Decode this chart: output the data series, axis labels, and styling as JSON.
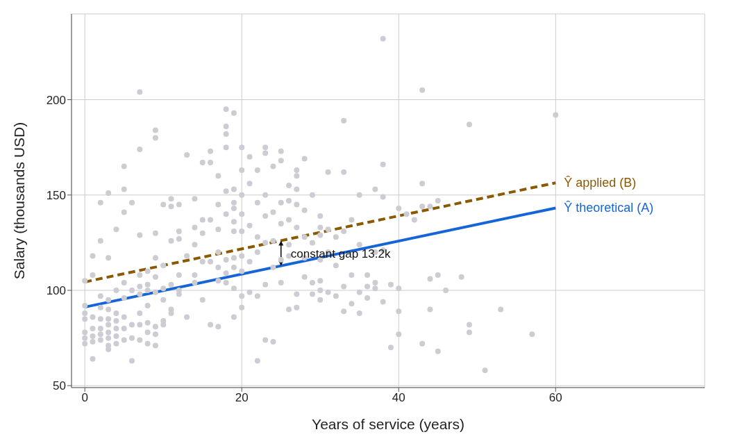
{
  "chart_data": {
    "type": "scatter",
    "xlabel": "Years of service (years)",
    "ylabel": "Salary (thousands USD)",
    "xlim": [
      -1.7,
      79
    ],
    "ylim": [
      49,
      245
    ],
    "xticks": [
      0,
      20,
      40,
      60
    ],
    "yticks": [
      50,
      100,
      150,
      200
    ],
    "grid": true,
    "legend": false,
    "annotations": [
      "constant gap 13.2k"
    ],
    "series": [
      {
        "marker": "circle",
        "color": "#cdccd3",
        "x": [
          0,
          0,
          0,
          0,
          0,
          0,
          0,
          1,
          1,
          1,
          1,
          1,
          1,
          1,
          2,
          2,
          2,
          2,
          2,
          2,
          2,
          2,
          3,
          3,
          3,
          3,
          3,
          3,
          3,
          3,
          3,
          3,
          4,
          4,
          4,
          4,
          4,
          4,
          4,
          5,
          5,
          5,
          5,
          5,
          5,
          5,
          5,
          6,
          6,
          6,
          6,
          6,
          7,
          7,
          7,
          7,
          7,
          7,
          7,
          7,
          7,
          8,
          8,
          8,
          8,
          8,
          8,
          8,
          9,
          9,
          9,
          9,
          9,
          9,
          9,
          9,
          9,
          10,
          10,
          10,
          10,
          10,
          10,
          11,
          11,
          11,
          11,
          11,
          11,
          12,
          12,
          12,
          12,
          12,
          12,
          13,
          13,
          13,
          14,
          14,
          14,
          14,
          14,
          15,
          15,
          15,
          15,
          15,
          16,
          16,
          16,
          16,
          16,
          17,
          17,
          17,
          17,
          17,
          17,
          17,
          18,
          18,
          18,
          18,
          18,
          18,
          18,
          18,
          18,
          19,
          19,
          19,
          19,
          19,
          19,
          19,
          19,
          19,
          19,
          20,
          20,
          20,
          20,
          20,
          20,
          20,
          20,
          20,
          21,
          21,
          21,
          21,
          21,
          22,
          22,
          22,
          22,
          22,
          22,
          23,
          23,
          23,
          23,
          23,
          23,
          23,
          24,
          24,
          24,
          24,
          24,
          25,
          25,
          25,
          25,
          25,
          25,
          26,
          26,
          26,
          26,
          26,
          26,
          27,
          27,
          27,
          27,
          27,
          27,
          27,
          28,
          28,
          28,
          28,
          28,
          29,
          29,
          29,
          29,
          30,
          30,
          30,
          30,
          30,
          30,
          30,
          31,
          31,
          31,
          31,
          32,
          32,
          32,
          33,
          33,
          33,
          33,
          33,
          34,
          34,
          34,
          35,
          35,
          35,
          35,
          36,
          36,
          36,
          37,
          37,
          37,
          37,
          38,
          38,
          38,
          38,
          38,
          39,
          39,
          40,
          40,
          40,
          40,
          41,
          42,
          43,
          43,
          43,
          43,
          44,
          44,
          44,
          45,
          45,
          45,
          46,
          48,
          49,
          49,
          49,
          51,
          53,
          57,
          60
        ],
        "values": [
          105,
          92,
          88,
          85,
          78,
          75,
          72,
          118,
          108,
          86,
          80,
          76,
          73,
          64,
          146,
          126,
          97,
          91,
          85,
          80,
          77,
          74,
          151,
          117,
          95,
          90,
          85,
          82,
          78,
          75,
          71,
          69,
          132,
          100,
          88,
          84,
          80,
          76,
          72,
          165,
          153,
          141,
          104,
          96,
          86,
          80,
          74,
          146,
          100,
          82,
          75,
          63,
          204,
          174,
          129,
          108,
          102,
          98,
          88,
          82,
          74,
          110,
          103,
          100,
          92,
          83,
          78,
          72,
          184,
          180,
          130,
          117,
          107,
          99,
          81,
          77,
          71,
          145,
          113,
          101,
          95,
          84,
          82,
          148,
          144,
          126,
          103,
          90,
          88,
          145,
          131,
          127,
          108,
          100,
          98,
          171,
          118,
          86,
          148,
          133,
          124,
          108,
          104,
          167,
          137,
          130,
          115,
          95,
          173,
          167,
          137,
          115,
          82,
          160,
          145,
          132,
          120,
          112,
          105,
          81,
          195,
          186,
          182,
          175,
          152,
          140,
          116,
          109,
          104,
          193,
          153,
          146,
          143,
          136,
          131,
          117,
          112,
          101,
          86,
          175,
          163,
          150,
          140,
          131,
          118,
          110,
          97,
          91,
          170,
          156,
          134,
          115,
          99,
          163,
          146,
          128,
          120,
          97,
          63,
          175,
          172,
          150,
          139,
          125,
          103,
          74,
          165,
          141,
          126,
          112,
          73,
          173,
          168,
          146,
          135,
          116,
          104,
          155,
          147,
          137,
          124,
          118,
          90,
          163,
          160,
          153,
          145,
          133,
          98,
          91,
          169,
          142,
          128,
          117,
          107,
          150,
          125,
          104,
          98,
          139,
          133,
          129,
          116,
          105,
          100,
          95,
          162,
          132,
          120,
          99,
          128,
          113,
          97,
          189,
          162,
          131,
          102,
          89,
          137,
          108,
          93,
          150,
          124,
          99,
          88,
          108,
          102,
          96,
          153,
          120,
          104,
          101,
          232,
          166,
          149,
          121,
          94,
          70,
          103,
          143,
          101,
          89,
          77,
          140,
          137,
          205,
          156,
          144,
          72,
          144,
          106,
          90,
          147,
          108,
          68,
          100,
          107,
          187,
          82,
          78,
          58,
          90,
          77,
          192
        ]
      },
      {
        "type": "line",
        "name": "Ŷ theoretical (A)",
        "marker": "none",
        "line_style": "solid",
        "color": "#1565d8",
        "x": [
          0,
          60
        ],
        "values": [
          91.2,
          143.2
        ]
      },
      {
        "type": "line",
        "name": "Ŷ applied (B)",
        "marker": "none",
        "line_style": "dashed",
        "color": "#8b5a00",
        "x": [
          0,
          60
        ],
        "values": [
          104.4,
          156.4
        ]
      }
    ]
  }
}
